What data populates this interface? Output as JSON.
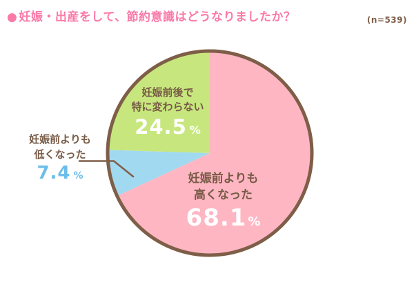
{
  "header": {
    "bullet": "●",
    "title": "妊娠・出産をして、節約意識はどうなりましたか？",
    "sample_size": "(n=539)"
  },
  "palette": {
    "title_pink": "#fa7aa8",
    "label_brown": "#775a45",
    "outline_brown": "#7e5e48",
    "white": "#ffffff"
  },
  "chart_data": {
    "type": "pie",
    "title": "妊娠・出産をして、節約意識はどうなりましたか？",
    "n": 539,
    "n_label": "(n=539)",
    "start_angle_deg": 0,
    "direction": "clockwise",
    "outline_color": "#7e5e48",
    "slices": [
      {
        "key": "increased",
        "label": "妊娠前よりも高くなった",
        "line1": "妊娠前よりも",
        "line2": "高くなった",
        "value": 68.1,
        "unit": "%",
        "color": "#ffb6c3",
        "value_color": "#ffffff",
        "label_position": "inside"
      },
      {
        "key": "decreased",
        "label": "妊娠前よりも低くなった",
        "line1": "妊娠前よりも",
        "line2": "低くなった",
        "value": 7.4,
        "unit": "%",
        "color": "#a0d9f0",
        "value_color": "#6cbdea",
        "label_position": "outside-left"
      },
      {
        "key": "unchanged",
        "label": "妊娠前後で特に変わらない",
        "line1": "妊娠前後で",
        "line2": "特に変わらない",
        "value": 24.5,
        "unit": "%",
        "color": "#c7e77e",
        "value_color": "#ffffff",
        "label_position": "inside"
      }
    ]
  }
}
